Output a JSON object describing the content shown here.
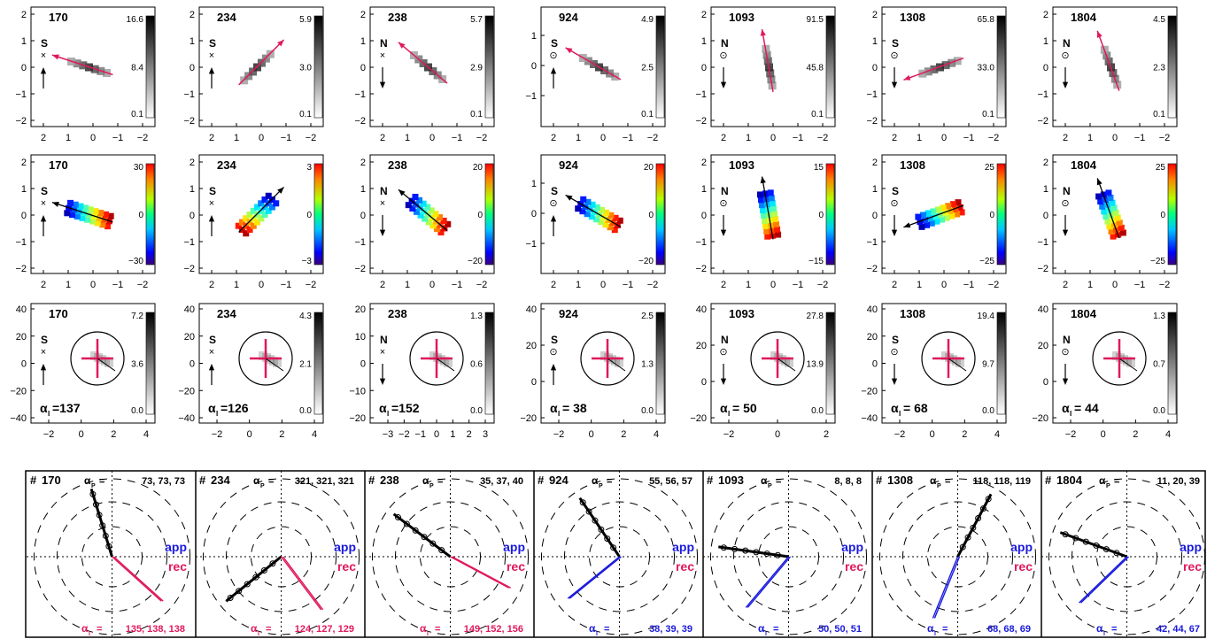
{
  "figure": {
    "row_labels": {
      "x_ticks_wide": [
        "2",
        "1",
        "0",
        "−1",
        "−2"
      ],
      "y_ticks_wide": [
        "2",
        "1",
        "0",
        "−1",
        "−2"
      ]
    },
    "objects": [
      {
        "id": "170",
        "dir": "S",
        "mark": "×",
        "arrow": "up",
        "alpha_i_label": "137",
        "r1": {
          "cmax": "16.6",
          "cmid": "8.4",
          "cmin": "0.1",
          "angle": -162
        },
        "r2": {
          "cmax": "30",
          "cmid": "0",
          "cmin": "−30",
          "angle": -162
        },
        "r3": {
          "cmax": "7.2",
          "cmid": "3.6",
          "cmin": "0.0",
          "yticks": [
            "40",
            "20",
            "0",
            "−20",
            "−40"
          ],
          "xticks": [
            "−2",
            "0",
            "2",
            "4"
          ]
        },
        "polar": {
          "alpha_p": "73,  73,  73",
          "alpha_i": "135, 138, 138",
          "icol": "#e0195a"
        }
      },
      {
        "id": "234",
        "dir": "S",
        "mark": "×",
        "arrow": "up",
        "alpha_i_label": "126",
        "r1": {
          "cmax": "5.9",
          "cmid": "3.0",
          "cmin": "0.1",
          "angle": -45
        },
        "r2": {
          "cmax": "3",
          "cmid": "0",
          "cmin": "−3",
          "angle": -45
        },
        "r3": {
          "cmax": "4.3",
          "cmid": "2.1",
          "cmin": "0.0",
          "yticks": [
            "40",
            "20",
            "0",
            "−20",
            "−40"
          ],
          "xticks": [
            "−2",
            "0",
            "2",
            "4"
          ]
        },
        "polar": {
          "alpha_p": "321, 321, 321",
          "alpha_i": "124, 127, 129",
          "icol": "#e0195a"
        }
      },
      {
        "id": "238",
        "dir": "N",
        "mark": "×",
        "arrow": "down",
        "alpha_i_label": "152",
        "r1": {
          "cmax": "5.7",
          "cmid": "2.9",
          "cmin": "0.1",
          "angle": -140
        },
        "r2": {
          "cmax": "20",
          "cmid": "0",
          "cmin": "−20",
          "angle": -140
        },
        "r3": {
          "cmax": "1.3",
          "cmid": "0.6",
          "cmin": "0.0",
          "yticks": [
            "20",
            "10",
            "0",
            "−10",
            "−20"
          ],
          "xticks": [
            "−3",
            "−2",
            "−1",
            "0",
            "1",
            "2",
            "3"
          ]
        },
        "polar": {
          "alpha_p": "35,  37,  40",
          "alpha_i": "149, 152, 156",
          "icol": "#e0195a"
        }
      },
      {
        "id": "924",
        "dir": "S",
        "mark": "⊙",
        "arrow": "up",
        "alpha_i_label": " 38",
        "r1": {
          "cmax": "4.9",
          "cmid": "2.5",
          "cmin": "0.1",
          "angle": -150
        },
        "r2": {
          "cmax": "20",
          "cmid": "0",
          "cmin": "−20",
          "angle": -150
        },
        "r3": {
          "cmax": "2.5",
          "cmid": "1.3",
          "cmin": "0.0",
          "yticks": [
            "40",
            "20",
            "0",
            "−20"
          ],
          "xticks": [
            "−2",
            "0",
            "2",
            "4"
          ]
        },
        "polar": {
          "alpha_p": "55,  56,  57",
          "alpha_i": "38,  39,  39",
          "icol": "#1a1adc"
        }
      },
      {
        "id": "1093",
        "dir": "N",
        "mark": "⊙",
        "arrow": "down",
        "alpha_i_label": " 50",
        "r1": {
          "cmax": "91.5",
          "cmid": "45.8",
          "cmin": "0.1",
          "angle": -100
        },
        "r2": {
          "cmax": "15",
          "cmid": "0",
          "cmin": "−15",
          "angle": -100
        },
        "r3": {
          "cmax": "27.8",
          "cmid": "13.9",
          "cmin": "0.0",
          "yticks": [
            "40",
            "20",
            "0",
            "−20"
          ],
          "xticks": [
            "−2",
            "0",
            "2"
          ]
        },
        "polar": {
          "alpha_p": "8,   8,   8",
          "alpha_i": "50,  50,  51",
          "icol": "#1a1adc"
        }
      },
      {
        "id": "1308",
        "dir": "S",
        "mark": "⊙",
        "arrow": "down",
        "alpha_i_label": " 68",
        "r1": {
          "cmax": "65.8",
          "cmid": "33.0",
          "cmin": "0.1",
          "angle": -200
        },
        "r2": {
          "cmax": "25",
          "cmid": "0",
          "cmin": "−25",
          "angle": -200
        },
        "r3": {
          "cmax": "19.4",
          "cmid": "9.7",
          "cmin": "0.0",
          "yticks": [
            "40",
            "20",
            "0",
            "−20",
            "−40"
          ],
          "xticks": [
            "−2",
            "0",
            "2",
            "4"
          ]
        },
        "polar": {
          "alpha_p": "118, 118, 119",
          "alpha_i": "68,  68,  69",
          "icol": "#1a1adc"
        }
      },
      {
        "id": "1804",
        "dir": "N",
        "mark": "⊙",
        "arrow": "down",
        "alpha_i_label": " 44",
        "r1": {
          "cmax": "4.5",
          "cmid": "2.3",
          "cmin": "0.1",
          "angle": -110
        },
        "r2": {
          "cmax": "25",
          "cmid": "0",
          "cmin": "−25",
          "angle": -110
        },
        "r3": {
          "cmax": "1.3",
          "cmid": "0.7",
          "cmin": "0.0",
          "yticks": [
            "40",
            "20",
            "0",
            "−20"
          ],
          "xticks": [
            "−2",
            "0",
            "2",
            "4"
          ]
        },
        "polar": {
          "alpha_p": "11,  20,  39",
          "alpha_i": "42,  44,  67",
          "icol": "#1a1adc"
        }
      }
    ],
    "extra_yticks": {
      "924": [
        "1",
        "0",
        "−1"
      ],
      "1093": [
        "2",
        "1",
        "0",
        "−1",
        "−2"
      ]
    },
    "polar_labels": {
      "app": "app",
      "rec": "rec",
      "hash": "#",
      "alpha_p_sym": "α",
      "alpha_p_sub": "P",
      "alpha_i_sub": "I",
      "eq": "="
    }
  },
  "chart_data": {
    "type": "scatter",
    "title": "",
    "panels": [
      "170",
      "234",
      "238",
      "924",
      "1093",
      "1308",
      "1804"
    ],
    "alpha_P": [
      [
        73,
        73,
        73
      ],
      [
        321,
        321,
        321
      ],
      [
        35,
        37,
        40
      ],
      [
        55,
        56,
        57
      ],
      [
        8,
        8,
        8
      ],
      [
        118,
        118,
        119
      ],
      [
        11,
        20,
        39
      ]
    ],
    "alpha_I": [
      [
        135,
        138,
        138
      ],
      [
        124,
        127,
        129
      ],
      [
        149,
        152,
        156
      ],
      [
        38,
        39,
        39
      ],
      [
        50,
        50,
        51
      ],
      [
        68,
        68,
        69
      ],
      [
        42,
        44,
        67
      ]
    ],
    "alpha_I_row3": [
      137,
      126,
      152,
      38,
      50,
      68,
      44
    ],
    "colorbar_max_row1": [
      16.6,
      5.9,
      5.7,
      4.9,
      91.5,
      65.8,
      4.5
    ],
    "colorbar_max_row3": [
      7.2,
      4.3,
      1.3,
      2.5,
      27.8,
      19.4,
      1.3
    ],
    "colorbar_range_row2": [
      30,
      3,
      20,
      20,
      15,
      25,
      25
    ]
  }
}
